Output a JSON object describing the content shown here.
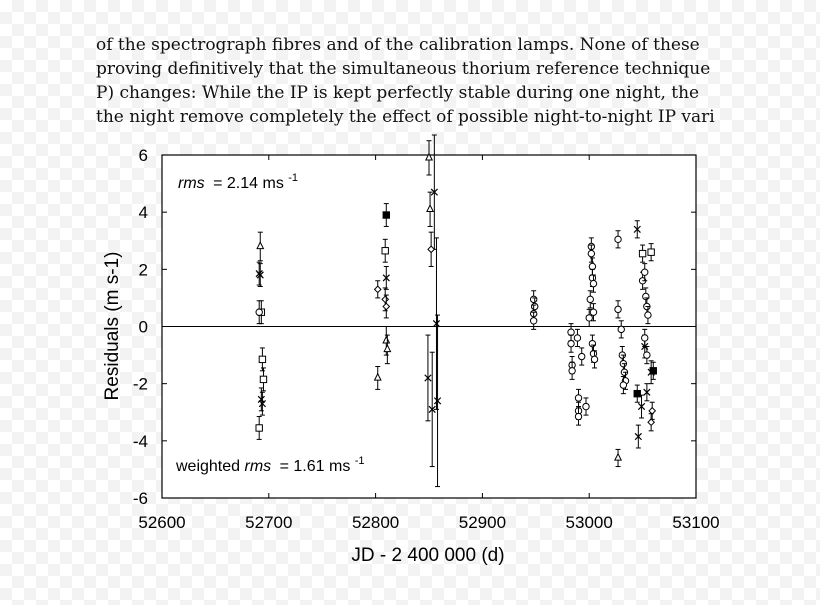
{
  "paper_text": {
    "lines": [
      "of the spectrograph fibres and of the calibration lamps. None of these",
      "proving definitively that the simultaneous thorium reference technique",
      "P) changes: While the IP is kept perfectly stable during one night, the",
      "the night remove completely the effect of possible night-to-night IP vari"
    ]
  },
  "chart_data": {
    "type": "scatter",
    "xlabel": "JD - 2 400 000 (d)",
    "ylabel": "Residuals (m s-1)",
    "xlim": [
      52600,
      53100
    ],
    "ylim": [
      -6,
      6
    ],
    "xticks": [
      "52600",
      "52700",
      "52800",
      "52900",
      "53000",
      "53100"
    ],
    "yticks": [
      "-6",
      "-4",
      "-2",
      "0",
      "2",
      "4",
      "6"
    ],
    "zero_line": true,
    "grid": false,
    "annotations": {
      "rms_label": "rms",
      "rms_value": "= 2.14 ms",
      "rms_unit_exp": "-1",
      "wrms_prefix": "weighted ",
      "wrms_label": "rms",
      "wrms_value": "= 1.61 ms",
      "wrms_unit_exp": "-1"
    },
    "series": [
      {
        "marker": "triangle",
        "points": [
          [
            52692,
            2.8,
            0.5
          ],
          [
            52802,
            -1.8,
            0.4
          ],
          [
            52810,
            -0.5,
            0.5
          ],
          [
            52811,
            -0.8,
            0.5
          ],
          [
            52850,
            5.9,
            0.6
          ],
          [
            52851,
            4.1,
            0.6
          ],
          [
            53027,
            -4.6,
            0.3
          ]
        ]
      },
      {
        "marker": "x",
        "points": [
          [
            52691,
            1.85,
            0.4
          ],
          [
            52692,
            1.8,
            0.4
          ],
          [
            52693,
            -2.55,
            0.4
          ],
          [
            52694,
            -2.7,
            0.4
          ],
          [
            52810,
            1.7,
            0.4
          ],
          [
            52849,
            -1.8,
            1.5
          ],
          [
            52853,
            -2.9,
            2.0
          ],
          [
            52855,
            4.7,
            2.0
          ],
          [
            52857,
            0.1,
            3.0
          ],
          [
            52858,
            -2.6,
            3.0
          ],
          [
            53045,
            3.4,
            0.3
          ],
          [
            53046,
            -3.85,
            0.4
          ],
          [
            53049,
            -2.8,
            0.4
          ],
          [
            53052,
            -0.7,
            0.4
          ],
          [
            53054,
            -2.3,
            0.3
          ],
          [
            53058,
            -1.6,
            0.4
          ]
        ]
      },
      {
        "marker": "square",
        "points": [
          [
            52691,
            -3.55,
            0.4
          ],
          [
            52693,
            0.5,
            0.4
          ],
          [
            52694,
            -1.15,
            0.4
          ],
          [
            52695,
            -1.85,
            0.4
          ],
          [
            52809,
            2.65,
            0.4
          ],
          [
            53050,
            2.55,
            0.3
          ],
          [
            53058,
            2.6,
            0.3
          ]
        ]
      },
      {
        "marker": "square-filled",
        "points": [
          [
            52810,
            3.9,
            0.4
          ],
          [
            53045,
            -2.35,
            0.3
          ],
          [
            53060,
            -1.55,
            0.3
          ]
        ]
      },
      {
        "marker": "diamond",
        "points": [
          [
            52802,
            1.3,
            0.3
          ],
          [
            52809,
            0.95,
            0.4
          ],
          [
            52810,
            0.7,
            0.4
          ],
          [
            52852,
            2.7,
            0.6
          ],
          [
            53059,
            -2.95,
            0.3
          ],
          [
            53058,
            -3.35,
            0.3
          ]
        ]
      },
      {
        "marker": "circle",
        "points": [
          [
            52691,
            0.5,
            0.4
          ],
          [
            52948,
            0.95,
            0.3
          ],
          [
            52949,
            0.7,
            0.3
          ],
          [
            52948,
            0.45,
            0.3
          ],
          [
            52948,
            0.2,
            0.3
          ],
          [
            52983,
            -0.2,
            0.3
          ],
          [
            52983,
            -0.6,
            0.3
          ],
          [
            52984,
            -1.35,
            0.3
          ],
          [
            52984,
            -1.55,
            0.3
          ],
          [
            52989,
            -0.4,
            0.3
          ],
          [
            52990,
            -2.5,
            0.3
          ],
          [
            52990,
            -2.95,
            0.3
          ],
          [
            52990,
            -3.15,
            0.3
          ],
          [
            52993,
            -1.05,
            0.3
          ],
          [
            52997,
            -2.8,
            0.3
          ],
          [
            53000,
            0.3,
            0.3
          ],
          [
            53001,
            0.95,
            0.3
          ],
          [
            53002,
            2.8,
            0.3
          ],
          [
            53002,
            2.55,
            0.3
          ],
          [
            53003,
            2.1,
            0.3
          ],
          [
            53003,
            1.7,
            0.3
          ],
          [
            53004,
            1.5,
            0.3
          ],
          [
            53004,
            0.5,
            0.3
          ],
          [
            53003,
            -0.6,
            0.3
          ],
          [
            53004,
            -0.95,
            0.3
          ],
          [
            53005,
            -1.15,
            0.3
          ],
          [
            53027,
            3.05,
            0.3
          ],
          [
            53027,
            0.6,
            0.3
          ],
          [
            53030,
            -0.1,
            0.3
          ],
          [
            53031,
            -1.0,
            0.3
          ],
          [
            53032,
            -1.3,
            0.3
          ],
          [
            53033,
            -1.6,
            0.3
          ],
          [
            53034,
            -1.9,
            0.3
          ],
          [
            53032,
            -2.05,
            0.3
          ],
          [
            53050,
            1.6,
            0.3
          ],
          [
            53052,
            1.9,
            0.3
          ],
          [
            53053,
            1.05,
            0.3
          ],
          [
            53054,
            0.7,
            0.3
          ],
          [
            53055,
            0.4,
            0.3
          ],
          [
            53052,
            -0.4,
            0.3
          ],
          [
            53054,
            -1.0,
            0.3
          ]
        ]
      }
    ]
  }
}
